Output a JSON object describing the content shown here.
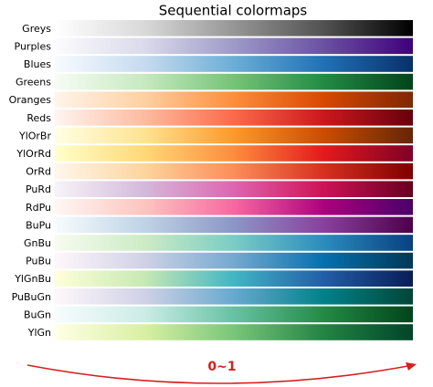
{
  "chart_data": {
    "type": "colormaps",
    "title": "Sequential colormaps",
    "annotation": "0~1",
    "annotation_color": "#d42020",
    "series": [
      {
        "name": "Greys",
        "colors": [
          "#ffffff",
          "#d9d9d9",
          "#969696",
          "#525252",
          "#000000"
        ]
      },
      {
        "name": "Purples",
        "colors": [
          "#fcfbfd",
          "#dadaeb",
          "#9e9ac8",
          "#6a51a3",
          "#3f007d"
        ]
      },
      {
        "name": "Blues",
        "colors": [
          "#f7fbff",
          "#c6dbef",
          "#6baed6",
          "#2171b5",
          "#08306b"
        ]
      },
      {
        "name": "Greens",
        "colors": [
          "#f7fcf5",
          "#c7e9c0",
          "#74c476",
          "#238b45",
          "#00441b"
        ]
      },
      {
        "name": "Oranges",
        "colors": [
          "#fff5eb",
          "#fdd0a2",
          "#fd8d3c",
          "#d94801",
          "#7f2704"
        ]
      },
      {
        "name": "Reds",
        "colors": [
          "#fff5f0",
          "#fcbba1",
          "#fb6a4a",
          "#cb181d",
          "#67000d"
        ]
      },
      {
        "name": "YlOrBr",
        "colors": [
          "#ffffe5",
          "#fee391",
          "#fe9929",
          "#cc4c02",
          "#662506"
        ]
      },
      {
        "name": "YlOrRd",
        "colors": [
          "#ffffcc",
          "#fed976",
          "#fd8d3c",
          "#e31a1c",
          "#800026"
        ]
      },
      {
        "name": "OrRd",
        "colors": [
          "#fff7ec",
          "#fdd49e",
          "#fc8d59",
          "#d7301f",
          "#7f0000"
        ]
      },
      {
        "name": "PuRd",
        "colors": [
          "#f7f4f9",
          "#d4b9da",
          "#df65b0",
          "#ce1256",
          "#67001f"
        ]
      },
      {
        "name": "RdPu",
        "colors": [
          "#fff7f3",
          "#fcc5c0",
          "#f768a1",
          "#ae017e",
          "#49006a"
        ]
      },
      {
        "name": "BuPu",
        "colors": [
          "#f7fcfd",
          "#bfd3e6",
          "#8c96c6",
          "#88419d",
          "#4d004b"
        ]
      },
      {
        "name": "GnBu",
        "colors": [
          "#f7fcf0",
          "#ccebc5",
          "#7bccc4",
          "#2b8cbe",
          "#084081"
        ]
      },
      {
        "name": "PuBu",
        "colors": [
          "#fff7fb",
          "#d0d1e6",
          "#74a9cf",
          "#0570b0",
          "#023858"
        ]
      },
      {
        "name": "YlGnBu",
        "colors": [
          "#ffffd9",
          "#c7e9b4",
          "#41b6c4",
          "#225ea8",
          "#081d58"
        ]
      },
      {
        "name": "PuBuGn",
        "colors": [
          "#fff7fb",
          "#d0d1e6",
          "#67a9cf",
          "#02818a",
          "#014636"
        ]
      },
      {
        "name": "BuGn",
        "colors": [
          "#f7fcfd",
          "#ccece6",
          "#66c2a4",
          "#238b45",
          "#00441b"
        ]
      },
      {
        "name": "YlGn",
        "colors": [
          "#ffffe5",
          "#d9f0a3",
          "#78c679",
          "#238443",
          "#004529"
        ]
      }
    ]
  }
}
